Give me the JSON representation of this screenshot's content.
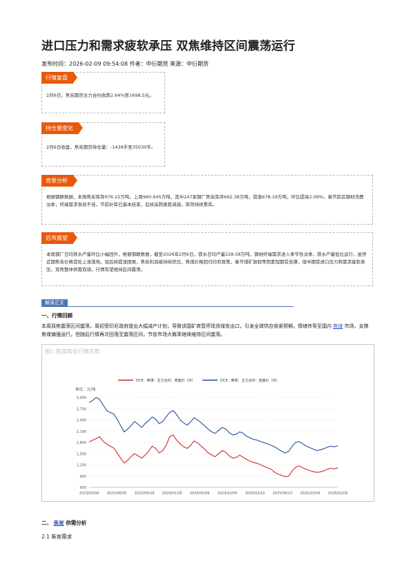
{
  "article": {
    "title": "进口压力和需求疲软承压 双焦维持区间震荡运行",
    "meta": "发布时间：2026-02-09 09:54:08 作者：中衍期货 来源：中衍期货"
  },
  "boxes": {
    "review": {
      "tag": "行情复盘",
      "text": "2月6日，焦炭期货主力合约收跌2.64%至1698.5元。"
    },
    "position": {
      "tag": "持仓量变化",
      "text": "2月6日收盘，焦炭期货持仓量：-1439手至35030手。"
    },
    "background": {
      "tag": "背景分析",
      "text": "根据钢联数据，本周焦炭库存976.22万吨，上周960.645万吨，其中247家钢厂焦炭库存692.38万吨，前值678.19万吨，环比提高2.09%，春节前后钢材消费淡季，终端需求表现不佳，节前补库已基本结束，后续采购意愿减弱，库存持续累库。"
    },
    "outlook": {
      "tag": "后市展望",
      "text": "本周钢厂日均铁水产量环比小幅回升，根据钢联数据，截至2026年2月6日，铁水日均产量228.58万吨，钢材终端需求进入季节性淡季，铁水产量低位运行，虽然近期焦炭价格首轮上涨落地，但后续提涨困难，焦炭利润被持续挤压，焦煤价格回归印尼政策，春节煤矿放假等因素短期受支撑，但中期受进口压力和需求疲软承压，双焦整体供需双弱，行情有望维持区间震荡。"
    }
  },
  "body": {
    "section_tab": "解读正文",
    "h1": "一、行情回顾",
    "para1_a": "本周双焦震荡区间震荡，周初受印尼政府提出大幅减产计划，导致该国矿商暂停现货煤炭出口，引发全球供应收紧预期，情绪传导至国内",
    "para1_link": "焦煤",
    "para1_b": "市场，支撑焦煤偏强运行，但随后行情再次回落至震荡区间，节前市场大概率继续维持区间震荡。",
    "h2_prefix": "二、",
    "h2_link": "焦炭",
    "h2_suffix": "供需分析",
    "h3": "2.1 焦炭需求"
  },
  "chart_data": {
    "type": "line",
    "title": "图1 焦煤焦炭行情走势",
    "unit": "单位：元/吨",
    "x_ticks": [
      "2023/02/06",
      "2023/06/05",
      "2023/09/28",
      "2024/01/28",
      "2024/05/06",
      "2024/10/09",
      "2025/02/10",
      "2025/06/10",
      "2025/10/09",
      "2026/02/06"
    ],
    "y_ticks": [
      600,
      900,
      1200,
      1500,
      1800,
      2100,
      2400,
      2700,
      3000
    ],
    "ylim": [
      600,
      3000
    ],
    "legend_position": "top",
    "colors": {
      "coking_coal": "#d0262e",
      "coke": "#1f4e9c"
    },
    "series": [
      {
        "name": "DCE：焦煤：主力合约：收盘价（日）",
        "color": "#d0262e",
        "values": [
          1810,
          1860,
          1900,
          1950,
          1830,
          1760,
          1700,
          1650,
          1520,
          1380,
          1250,
          1320,
          1420,
          1500,
          1440,
          1380,
          1460,
          1560,
          1700,
          1640,
          1520,
          1580,
          1720,
          1950,
          2000,
          1860,
          1760,
          1680,
          1640,
          1720,
          1840,
          1780,
          1700,
          1620,
          1520,
          1460,
          1420,
          1500,
          1580,
          1540,
          1440,
          1380,
          1400,
          1460,
          1400,
          1340,
          1300,
          1260,
          1240,
          1200,
          1160,
          1120,
          1080,
          1000,
          950,
          920,
          880,
          900,
          1040,
          1140,
          1170,
          1120,
          1080,
          1050,
          1020,
          1000,
          1010,
          1040,
          1080,
          1110,
          1090,
          1120
        ]
      },
      {
        "name": "DCE：焦炭：主力合约：收盘价（日）",
        "color": "#1f4e9c",
        "values": [
          2860,
          2920,
          3000,
          2950,
          2800,
          2650,
          2600,
          2560,
          2420,
          2250,
          2080,
          2150,
          2250,
          2360,
          2280,
          2200,
          2300,
          2380,
          2480,
          2420,
          2300,
          2360,
          2480,
          2600,
          2650,
          2540,
          2400,
          2320,
          2260,
          2350,
          2460,
          2400,
          2320,
          2240,
          2150,
          2080,
          2040,
          2120,
          2200,
          2160,
          2060,
          2000,
          2020,
          2080,
          2040,
          1960,
          1920,
          1880,
          1860,
          1820,
          1790,
          1760,
          1720,
          1680,
          1620,
          1560,
          1520,
          1560,
          1700,
          1800,
          1820,
          1760,
          1700,
          1660,
          1620,
          1580,
          1600,
          1630,
          1670,
          1700,
          1680,
          1710
        ]
      }
    ]
  }
}
